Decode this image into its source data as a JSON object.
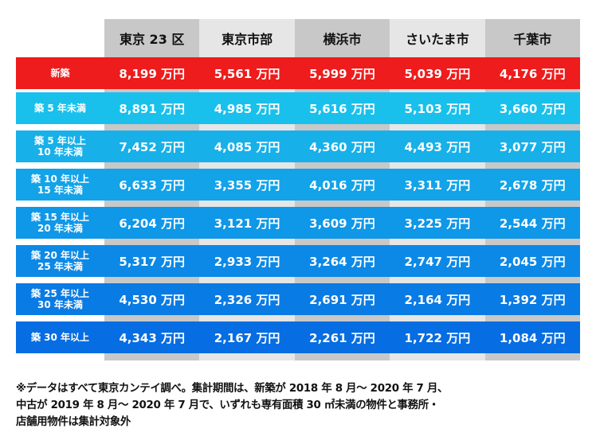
{
  "chart_data": {
    "type": "table",
    "columns": [
      "東京 23 区",
      "東京市部",
      "横浜市",
      "さいたま市",
      "千葉市"
    ],
    "rows": [
      {
        "label": "新築",
        "values": [
          "8,199 万円",
          "5,561 万円",
          "5,999 万円",
          "5,039 万円",
          "4,176 万円"
        ],
        "color": "#ee1c1c"
      },
      {
        "label": "築 5 年未満",
        "values": [
          "8,891 万円",
          "4,985 万円",
          "5,616 万円",
          "5,103 万円",
          "3,660 万円"
        ],
        "color": "#1ac0ec"
      },
      {
        "label": "築 5 年以上\n10 年未満",
        "values": [
          "7,452 万円",
          "4,085 万円",
          "4,360 万円",
          "4,493 万円",
          "3,077 万円"
        ],
        "color": "#17b0e9"
      },
      {
        "label": "築 10 年以上\n15 年未満",
        "values": [
          "6,633 万円",
          "3,355 万円",
          "4,016 万円",
          "3,311 万円",
          "2,678 万円"
        ],
        "color": "#12a3e9"
      },
      {
        "label": "築 15 年以上\n20 年未満",
        "values": [
          "6,204 万円",
          "3,121 万円",
          "3,609 万円",
          "3,225 万円",
          "2,544 万円"
        ],
        "color": "#0f97e8"
      },
      {
        "label": "築 20 年以上\n25 年未満",
        "values": [
          "5,317 万円",
          "2,933 万円",
          "3,264 万円",
          "2,747 万円",
          "2,045 万円"
        ],
        "color": "#0c89e6"
      },
      {
        "label": "築 25 年以上\n30 年未満",
        "values": [
          "4,530 万円",
          "2,326 万円",
          "2,691 万円",
          "2,164 万円",
          "1,392 万円"
        ],
        "color": "#097be4"
      },
      {
        "label": "築 30 年以上",
        "values": [
          "4,343 万円",
          "2,167 万円",
          "2,261 万円",
          "1,722 万円",
          "1,084 万円"
        ],
        "color": "#066de2"
      }
    ]
  },
  "column_colors": [
    "#c8c8c8",
    "#e6e6e6",
    "#c8c8c8",
    "#e6e6e6",
    "#c8c8c8"
  ],
  "note_lines": [
    "※データはすべて東京カンテイ調べ。集計期間は、新築が 2018 年 8 月～ 2020 年 7 月、",
    "中古が 2019 年 8 月～ 2020 年 7 月で、いずれも専有面積 30 ㎡未満の物件と事務所・",
    "店舗用物件は集計対象外"
  ]
}
